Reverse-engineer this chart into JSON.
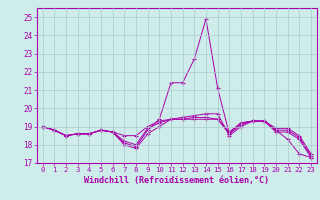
{
  "xlabel": "Windchill (Refroidissement éolien,°C)",
  "background_color": "#ceecea",
  "grid_color": "#aacccc",
  "line_color": "#aa00aa",
  "ylim": [
    17,
    25.5
  ],
  "xlim": [
    -0.5,
    23.5
  ],
  "yticks": [
    17,
    18,
    19,
    20,
    21,
    22,
    23,
    24,
    25
  ],
  "xticks": [
    0,
    1,
    2,
    3,
    4,
    5,
    6,
    7,
    8,
    9,
    10,
    11,
    12,
    13,
    14,
    15,
    16,
    17,
    18,
    19,
    20,
    21,
    22,
    23
  ],
  "series": [
    [
      19.0,
      18.8,
      18.5,
      18.6,
      18.6,
      18.8,
      18.7,
      18.1,
      17.9,
      18.8,
      19.4,
      21.4,
      21.4,
      22.7,
      24.9,
      21.1,
      18.6,
      19.2,
      19.3,
      19.3,
      18.8,
      18.3,
      17.5,
      17.3
    ],
    [
      19.0,
      18.8,
      18.5,
      18.6,
      18.6,
      18.8,
      18.7,
      18.5,
      18.5,
      19.0,
      19.3,
      19.4,
      19.4,
      19.4,
      19.4,
      19.4,
      18.7,
      19.2,
      19.3,
      19.3,
      18.9,
      18.9,
      18.5,
      17.5
    ],
    [
      19.0,
      18.8,
      18.5,
      18.6,
      18.6,
      18.8,
      18.7,
      18.2,
      18.0,
      18.9,
      19.2,
      19.4,
      19.4,
      19.5,
      19.5,
      19.4,
      18.6,
      19.1,
      19.3,
      19.3,
      18.8,
      18.8,
      18.4,
      17.4
    ],
    [
      19.0,
      18.8,
      18.5,
      18.6,
      18.6,
      18.8,
      18.7,
      18.0,
      17.8,
      18.6,
      19.0,
      19.4,
      19.5,
      19.6,
      19.7,
      19.7,
      18.5,
      19.0,
      19.3,
      19.3,
      18.7,
      18.7,
      18.3,
      17.3
    ]
  ]
}
